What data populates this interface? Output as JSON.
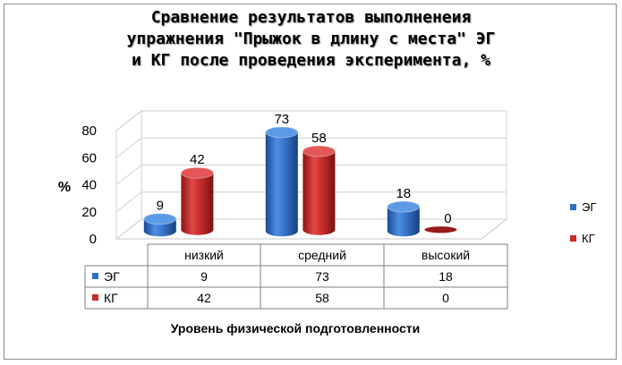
{
  "title_lines": [
    "Сравнение результатов выполненеия",
    "упражнения \"Прыжок в длину с места\" ЭГ",
    "и КГ после проведения эксперимента, %"
  ],
  "colors": {
    "eg": "#2f6fc6",
    "kg": "#c92a2a"
  },
  "chart_data": {
    "type": "bar",
    "title": "Сравнение результатов выполненеия упражнения \"Прыжок в длину с места\" ЭГ и КГ после проведения эксперимента, %",
    "categories": [
      "низкий",
      "средний",
      "высокий"
    ],
    "series": [
      {
        "name": "ЭГ",
        "values": [
          9,
          73,
          18
        ]
      },
      {
        "name": "КГ",
        "values": [
          42,
          58,
          0
        ]
      }
    ],
    "ylabel": "%",
    "xlabel": "Уровень физической подготовленности",
    "ylim": [
      0,
      80
    ],
    "yticks": [
      0,
      20,
      40,
      60,
      80
    ],
    "grid": true,
    "legend": "right",
    "data_table": true,
    "style": "3d-cylinder"
  }
}
